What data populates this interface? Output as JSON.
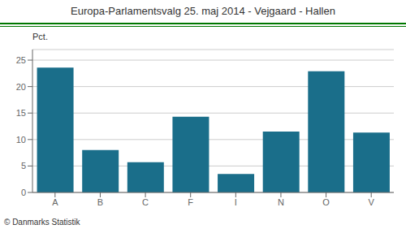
{
  "chart_data": {
    "type": "bar",
    "title": "Europa-Parlamentsvalg 25. maj 2014 - Vejgaard - Hallen",
    "categories": [
      "A",
      "B",
      "C",
      "F",
      "I",
      "N",
      "O",
      "V"
    ],
    "values": [
      23.6,
      8.0,
      5.7,
      14.3,
      3.5,
      11.5,
      22.9,
      11.3
    ],
    "color": "#1a6e8a",
    "ylabel": "Pct.",
    "ylim": [
      0,
      27
    ],
    "yticks": [
      0,
      5,
      10,
      15,
      20,
      25
    ],
    "grid": true,
    "annotations": [
      "© Danmarks Statistik"
    ]
  }
}
